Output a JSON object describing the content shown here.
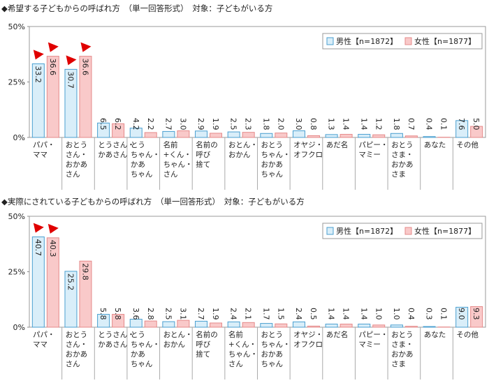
{
  "chart_data": [
    {
      "type": "bar",
      "title": "◆希望する子どもからの呼ばれ方　（単一回答形式）　対象：子どもがいる方",
      "categories": [
        "パパ・\nママ",
        "おとう\nさん・\nおかあ\nさん",
        "とうさん・\nかあさん",
        "とう\nちゃん・\nかあ\nちゃん",
        "名前\n+くん・\nちゃん・\nさん",
        "名前の\n呼び\n捨て",
        "おとん・\nおかん",
        "おとう\nちゃん・\nおかあ\nちゃん",
        "オヤジ・\nオフクロ",
        "あだ名",
        "パピー・\nマミー",
        "おとう\nさま・\nおかあ\nさま",
        "あなた",
        "その他"
      ],
      "series": [
        {
          "name": "男性【n=1872】",
          "color": "#d9eef9",
          "values": [
            33.2,
            30.7,
            6.5,
            4.2,
            2.7,
            2.9,
            2.5,
            1.8,
            3.0,
            1.3,
            1.4,
            1.8,
            0.4,
            7.6
          ],
          "value_labels": [
            "33.2",
            "30.7",
            "6.5",
            "4.2",
            "2.7",
            "2.9",
            "2.5",
            "1.8",
            "3.0",
            "1.3",
            "1.4",
            "1.8",
            "0.4",
            "7.6"
          ]
        },
        {
          "name": "女性【n=1877】",
          "color": "#f9c9c9",
          "values": [
            36.6,
            36.6,
            6.2,
            2.2,
            3.0,
            1.9,
            2.3,
            2.0,
            0.8,
            1.4,
            1.2,
            0.7,
            0.1,
            5.0
          ],
          "value_labels": [
            "36.6",
            "36.6",
            "6.2",
            "2.2",
            "3.0",
            "1.9",
            "2.3",
            "2.0",
            "0.8",
            "1.4",
            "1.2",
            "0.7",
            "0.1",
            "5.0"
          ]
        }
      ],
      "ylim": [
        0,
        50
      ],
      "yticks": [
        {
          "value": 0,
          "label": "0%"
        },
        {
          "value": 25,
          "label": "25%"
        },
        {
          "value": 50,
          "label": "50%"
        }
      ],
      "legend": "upper right"
    },
    {
      "type": "bar",
      "title": "◆実際にされている子どもからの呼ばれ方　（単一回答形式）　対象：子どもがいる方",
      "categories": [
        "パパ・\nママ",
        "おとう\nさん・\nおかあ\nさん",
        "とうさん・\nかあさん",
        "とう\nちゃん・\nかあ\nちゃん",
        "おとん・\nおかん",
        "名前の\n呼び\n捨て",
        "名前\n+くん・\nちゃん・\nさん",
        "おとう\nちゃん・\nおかあ\nちゃん",
        "オヤジ・\nオフクロ",
        "あだ名",
        "パピー・\nマミー",
        "おとう\nさま・\nおかあ\nさま",
        "あなた",
        "その他"
      ],
      "series": [
        {
          "name": "男性【n=1872】",
          "color": "#d9eef9",
          "values": [
            40.7,
            25.2,
            5.8,
            3.6,
            2.5,
            2.7,
            2.4,
            1.7,
            2.4,
            1.4,
            1.4,
            1.0,
            0.3,
            9.0
          ],
          "value_labels": [
            "40.7",
            "25.2",
            "5.8",
            "3.6",
            "2.5",
            "2.7",
            "2.4",
            "1.7",
            "2.4",
            "1.4",
            "1.4",
            "1.0",
            "0.3",
            "9.0"
          ]
        },
        {
          "name": "女性【n=1877】",
          "color": "#f9c9c9",
          "values": [
            40.3,
            29.8,
            5.8,
            2.8,
            3.1,
            1.9,
            2.1,
            1.5,
            0.5,
            1.4,
            1.0,
            0.4,
            0.1,
            9.3
          ],
          "value_labels": [
            "40.3",
            "29.8",
            "5.8",
            "2.8",
            "3.1",
            "1.9",
            "2.1",
            "1.5",
            "0.5",
            "1.4",
            "1.0",
            "0.4",
            "0.1",
            "9.3"
          ]
        }
      ],
      "ylim": [
        0,
        50
      ],
      "yticks": [
        {
          "value": 0,
          "label": "0%"
        },
        {
          "value": 25,
          "label": "25%"
        },
        {
          "value": 50,
          "label": "50%"
        }
      ],
      "legend": "upper right"
    }
  ]
}
